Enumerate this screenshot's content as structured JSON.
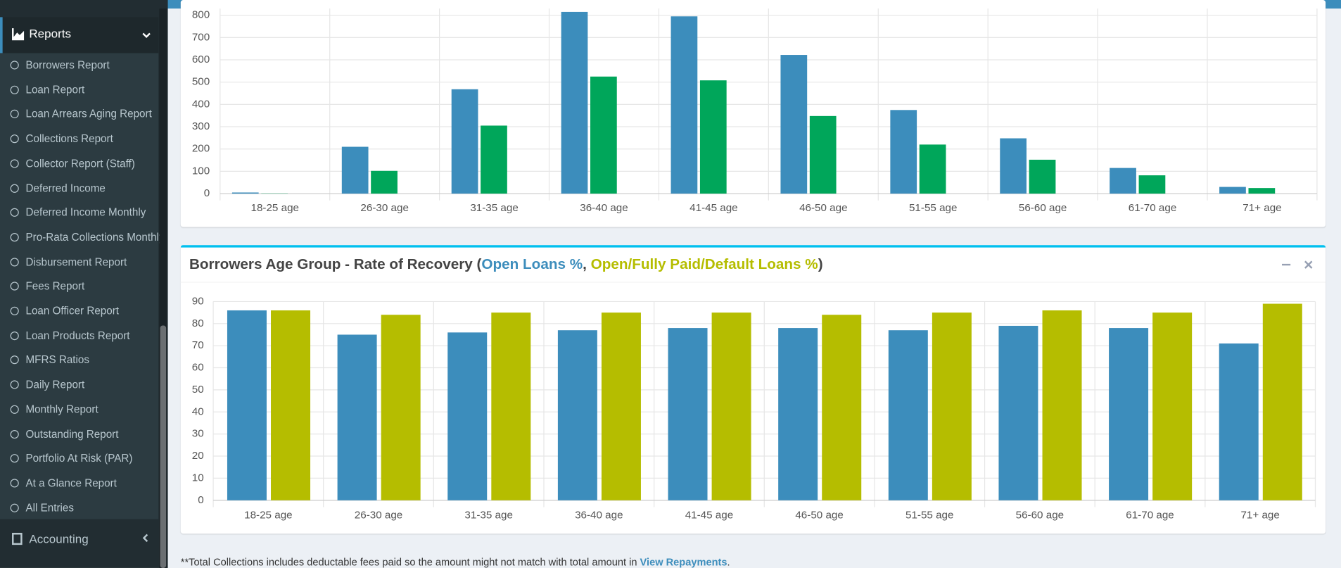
{
  "sidebar": {
    "section": "Reports",
    "items": [
      "Borrowers Report",
      "Loan Report",
      "Loan Arrears Aging Report",
      "Collections Report",
      "Collector Report (Staff)",
      "Deferred Income",
      "Deferred Income Monthly",
      "Pro-Rata Collections Monthly",
      "Disbursement Report",
      "Fees Report",
      "Loan Officer Report",
      "Loan Products Report",
      "MFRS Ratios",
      "Daily Report",
      "Monthly Report",
      "Outstanding Report",
      "Portfolio At Risk (PAR)",
      "At a Glance Report",
      "All Entries"
    ],
    "next_section": "Accounting"
  },
  "chart_data": [
    {
      "type": "bar",
      "categories": [
        "18-25 age",
        "26-30 age",
        "31-35 age",
        "36-40 age",
        "41-45 age",
        "46-50 age",
        "51-55 age",
        "56-60 age",
        "61-70 age",
        "71+ age"
      ],
      "series": [
        {
          "color": "#3c8dbc",
          "values": [
            5,
            210,
            468,
            815,
            795,
            622,
            375,
            248,
            115,
            30
          ]
        },
        {
          "color": "#00a65a",
          "values": [
            1,
            102,
            305,
            525,
            508,
            348,
            220,
            152,
            82,
            25
          ]
        }
      ],
      "ylim": [
        0,
        830
      ],
      "yticks": [
        0,
        100,
        200,
        300,
        400,
        500,
        600,
        700,
        800
      ],
      "grid": true
    },
    {
      "type": "bar",
      "title": "Borrowers Age Group - Rate of Recovery (",
      "title_separator": ",",
      "title_end": ")",
      "categories": [
        "18-25 age",
        "26-30 age",
        "31-35 age",
        "36-40 age",
        "41-45 age",
        "46-50 age",
        "51-55 age",
        "56-60 age",
        "61-70 age",
        "71+ age"
      ],
      "series": [
        {
          "name": "Open Loans %",
          "color": "#3c8dbc",
          "values": [
            86,
            75,
            76,
            77,
            78,
            78,
            77,
            79,
            78,
            71
          ]
        },
        {
          "name": "Open/Fully Paid/Default Loans %",
          "color": "#b5bd00",
          "values": [
            86,
            84,
            85,
            85,
            85,
            84,
            85,
            86,
            85,
            89
          ]
        }
      ],
      "ylim": [
        0,
        90
      ],
      "yticks": [
        0,
        10,
        20,
        30,
        40,
        50,
        60,
        70,
        80,
        90
      ],
      "grid": true
    }
  ],
  "footnote": {
    "text": "**Total Collections includes deductable fees paid so the amount might not match with total amount in ",
    "link": "View Repayments",
    "end": "."
  }
}
